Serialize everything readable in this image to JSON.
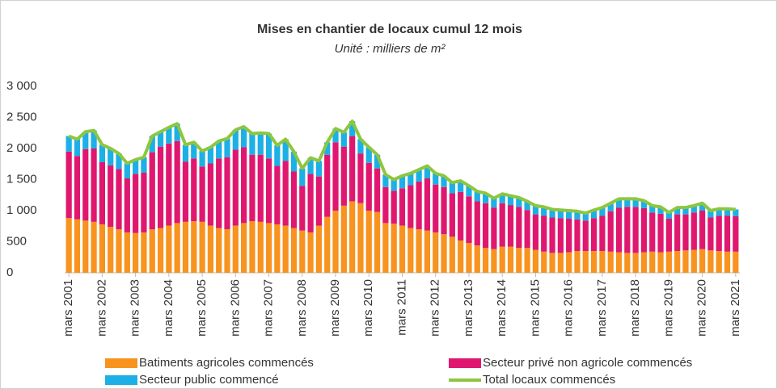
{
  "chart_data": {
    "type": "bar",
    "stacked": true,
    "title": "Mises en chantier de locaux cumul 12 mois",
    "subtitle": "Unité : milliers de m²",
    "categories": [
      "mars 2001",
      null,
      null,
      null,
      "mars 2002",
      null,
      null,
      null,
      "mars 2003",
      null,
      null,
      null,
      "mars 2004",
      null,
      null,
      null,
      "mars 2005",
      null,
      null,
      null,
      "mars 2006",
      null,
      null,
      null,
      "mars 2007",
      null,
      null,
      null,
      "mars 2008",
      null,
      null,
      null,
      "mars 2009",
      null,
      null,
      null,
      "mars 2010",
      null,
      null,
      null,
      "mars 2011",
      null,
      null,
      null,
      "mars 2012",
      null,
      null,
      null,
      "mars 2013",
      null,
      null,
      null,
      "mars 2014",
      null,
      null,
      null,
      "mars 2015",
      null,
      null,
      null,
      "mars 2016",
      null,
      null,
      null,
      "mars 2017",
      null,
      null,
      null,
      "mars 2018",
      null,
      null,
      null,
      "mars 2019",
      null,
      null,
      null,
      "mars 2020",
      null,
      null,
      null,
      "mars 2021"
    ],
    "series": [
      {
        "name": "Batiments agricoles commencés",
        "color": "#f7931e",
        "values": [
          880,
          860,
          840,
          820,
          780,
          740,
          700,
          650,
          640,
          650,
          700,
          720,
          760,
          800,
          820,
          830,
          820,
          760,
          720,
          700,
          760,
          800,
          830,
          820,
          800,
          780,
          760,
          720,
          680,
          650,
          760,
          900,
          1000,
          1080,
          1150,
          1120,
          1000,
          980,
          800,
          790,
          760,
          720,
          700,
          680,
          650,
          620,
          580,
          520,
          480,
          440,
          400,
          380,
          420,
          420,
          400,
          400,
          370,
          340,
          320,
          320,
          330,
          350,
          350,
          350,
          350,
          340,
          330,
          320,
          320,
          330,
          340,
          330,
          340,
          350,
          360,
          370,
          380,
          360,
          350,
          340,
          340
        ]
      },
      {
        "name": "Secteur privé non agricole commencés",
        "color": "#e0176f",
        "values": [
          1070,
          1020,
          1150,
          1180,
          1000,
          990,
          970,
          870,
          950,
          960,
          1240,
          1310,
          1320,
          1320,
          970,
          1010,
          890,
          1000,
          1120,
          1160,
          1220,
          1220,
          1070,
          1080,
          1040,
          940,
          1040,
          910,
          720,
          940,
          790,
          1000,
          1100,
          950,
          1050,
          800,
          770,
          700,
          580,
          530,
          600,
          690,
          770,
          840,
          770,
          760,
          700,
          780,
          750,
          710,
          720,
          670,
          700,
          670,
          660,
          610,
          570,
          580,
          570,
          560,
          540,
          510,
          490,
          530,
          570,
          650,
          720,
          740,
          740,
          710,
          630,
          620,
          530,
          590,
          580,
          600,
          620,
          530,
          570,
          580,
          570
        ]
      },
      {
        "name": "Secteur public commencé",
        "color": "#1cb0e6",
        "values": [
          250,
          270,
          280,
          290,
          280,
          270,
          250,
          240,
          230,
          250,
          260,
          240,
          260,
          280,
          270,
          260,
          250,
          260,
          280,
          300,
          320,
          330,
          340,
          350,
          400,
          330,
          350,
          320,
          280,
          260,
          250,
          200,
          220,
          230,
          240,
          230,
          250,
          220,
          200,
          180,
          200,
          190,
          190,
          200,
          180,
          180,
          170,
          180,
          170,
          160,
          160,
          150,
          150,
          150,
          150,
          140,
          140,
          140,
          130,
          130,
          130,
          130,
          120,
          130,
          130,
          130,
          140,
          130,
          130,
          120,
          110,
          110,
          100,
          110,
          110,
          110,
          120,
          110,
          110,
          110,
          110
        ]
      },
      {
        "name": "Total locaux commencés",
        "type": "line",
        "color": "#8dc63f",
        "values": [
          2200,
          2150,
          2270,
          2290,
          2060,
          2000,
          1920,
          1760,
          1820,
          1860,
          2200,
          2270,
          2340,
          2400,
          2060,
          2100,
          1960,
          2020,
          2120,
          2160,
          2300,
          2350,
          2240,
          2250,
          2240,
          2050,
          2150,
          1950,
          1680,
          1850,
          1800,
          2100,
          2320,
          2260,
          2440,
          2150,
          2020,
          1900,
          1580,
          1500,
          1560,
          1600,
          1660,
          1720,
          1600,
          1560,
          1450,
          1480,
          1400,
          1310,
          1280,
          1200,
          1270,
          1240,
          1210,
          1150,
          1080,
          1060,
          1020,
          1010,
          1000,
          990,
          960,
          1010,
          1050,
          1120,
          1190,
          1190,
          1190,
          1160,
          1080,
          1060,
          970,
          1050,
          1050,
          1080,
          1120,
          1000,
          1030,
          1030,
          1020
        ]
      }
    ],
    "ylim": [
      0,
      3000
    ],
    "yticks": [
      0,
      500,
      {
        "value": 1000,
        "label": "1 000"
      },
      {
        "value": 1500,
        "label": "1 500"
      },
      {
        "value": 2000,
        "label": "2 000"
      },
      {
        "value": 2500,
        "label": "2 500"
      },
      {
        "value": 3000,
        "label": "3 000"
      }
    ],
    "grid": false
  }
}
